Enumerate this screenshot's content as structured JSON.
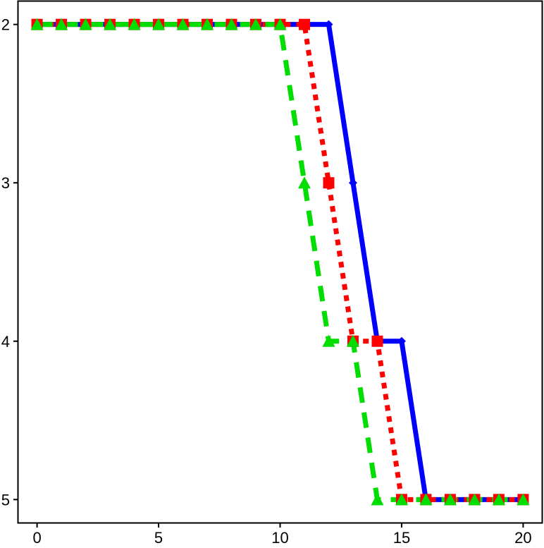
{
  "chart_data": {
    "type": "line",
    "title": "",
    "xlabel": "",
    "ylabel": "",
    "x": [
      0,
      1,
      2,
      3,
      4,
      5,
      6,
      7,
      8,
      9,
      10,
      11,
      12,
      13,
      14,
      15,
      16,
      17,
      18,
      19,
      20
    ],
    "xlim": [
      -0.8,
      20.8
    ],
    "ylim": [
      5.15,
      1.85
    ],
    "y_axis_inverted": true,
    "x_ticks": [
      0,
      5,
      10,
      15,
      20
    ],
    "x_tick_labels": [
      "0",
      "5",
      "10",
      "15",
      "20"
    ],
    "y_ticks": [
      2,
      3,
      4,
      5
    ],
    "y_tick_labels": [
      "2",
      "3",
      "4",
      "5"
    ],
    "grid": false,
    "legend": "none",
    "series": [
      {
        "color": "#0000ff",
        "line_style": "solid",
        "marker": "diamond",
        "values": [
          2,
          2,
          2,
          2,
          2,
          2,
          2,
          2,
          2,
          2,
          2,
          2,
          2,
          3,
          4,
          4,
          5,
          5,
          5,
          5,
          5
        ]
      },
      {
        "color": "#ff0000",
        "line_style": "dotted",
        "marker": "square",
        "values": [
          2,
          2,
          2,
          2,
          2,
          2,
          2,
          2,
          2,
          2,
          2,
          2,
          3,
          4,
          4,
          5,
          5,
          5,
          5,
          5,
          5
        ]
      },
      {
        "color": "#00dd00",
        "line_style": "dashed",
        "marker": "triangle",
        "values": [
          2,
          2,
          2,
          2,
          2,
          2,
          2,
          2,
          2,
          2,
          2,
          3,
          4,
          4,
          5,
          5,
          5,
          5,
          5,
          5,
          5
        ]
      }
    ]
  }
}
